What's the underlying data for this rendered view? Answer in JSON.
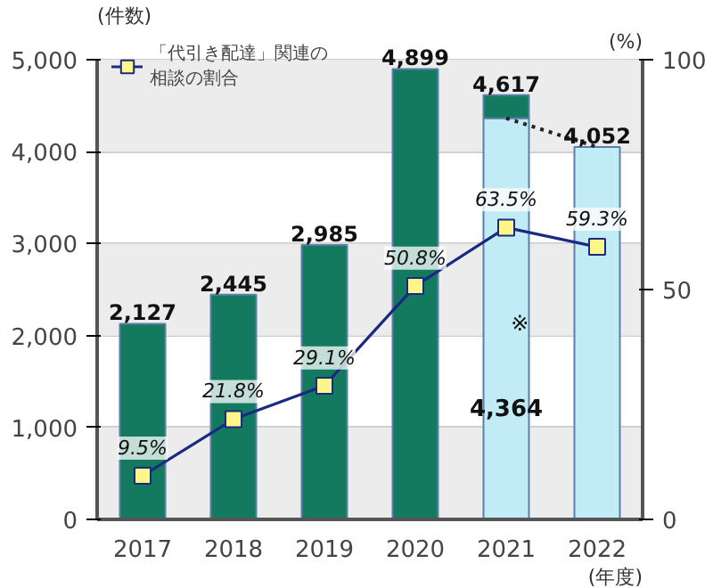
{
  "chart_data": {
    "type": "bar",
    "stacked": true,
    "categories": [
      "2017",
      "2018",
      "2019",
      "2020",
      "2021",
      "2022"
    ],
    "series": [
      {
        "color": "#c2ecf5",
        "values": [
          null,
          null,
          null,
          null,
          4364,
          4052
        ],
        "value_labels": [
          null,
          null,
          null,
          null,
          "4,364",
          null
        ]
      },
      {
        "color": "#137a5f",
        "values": [
          2127,
          2445,
          2985,
          4899,
          253,
          null
        ]
      },
      {
        "type": "line",
        "color": "#222222",
        "line_style": "dotted",
        "marker": "none",
        "values": [
          null,
          null,
          null,
          null,
          4364,
          4052
        ]
      },
      {
        "type": "line",
        "axis": "y2",
        "name": "「代引き配達」関連の相談の割合",
        "color": "#1a2a80",
        "marker": "square",
        "values": [
          9.5,
          21.8,
          29.1,
          50.8,
          63.5,
          59.3
        ],
        "value_labels": [
          "9.5%",
          "21.8%",
          "29.1%",
          "50.8%",
          "63.5%",
          "59.3%"
        ]
      }
    ],
    "totals": [
      "2,127",
      "2,445",
      "2,985",
      "4,899",
      "4,617",
      "4,052"
    ],
    "ylim": [
      0,
      5000
    ],
    "yticks": [
      0,
      {
        "value": 1000,
        "label": "1,000"
      },
      {
        "value": 2000,
        "label": "2,000"
      },
      {
        "value": 3000,
        "label": "3,000"
      },
      {
        "value": 4000,
        "label": "4,000"
      },
      {
        "value": 5000,
        "label": "5,000"
      }
    ],
    "y2lim": [
      0,
      100
    ],
    "y2ticks": [
      0,
      50,
      100
    ],
    "ylabel": "(件数)",
    "y2label": "(%)",
    "xlabel": "(年度)",
    "bands": [
      {
        "axis": "y",
        "from": 0,
        "to": 1000,
        "color": "#ececec"
      },
      {
        "axis": "y",
        "from": 2000,
        "to": 3000,
        "color": "#ececec"
      },
      {
        "axis": "y",
        "from": 4000,
        "to": 5000,
        "color": "#ececec"
      }
    ],
    "grid": "y",
    "legend": "top left",
    "annotations": [
      {
        "text": "※",
        "x": "2021",
        "y": 2000
      }
    ]
  }
}
